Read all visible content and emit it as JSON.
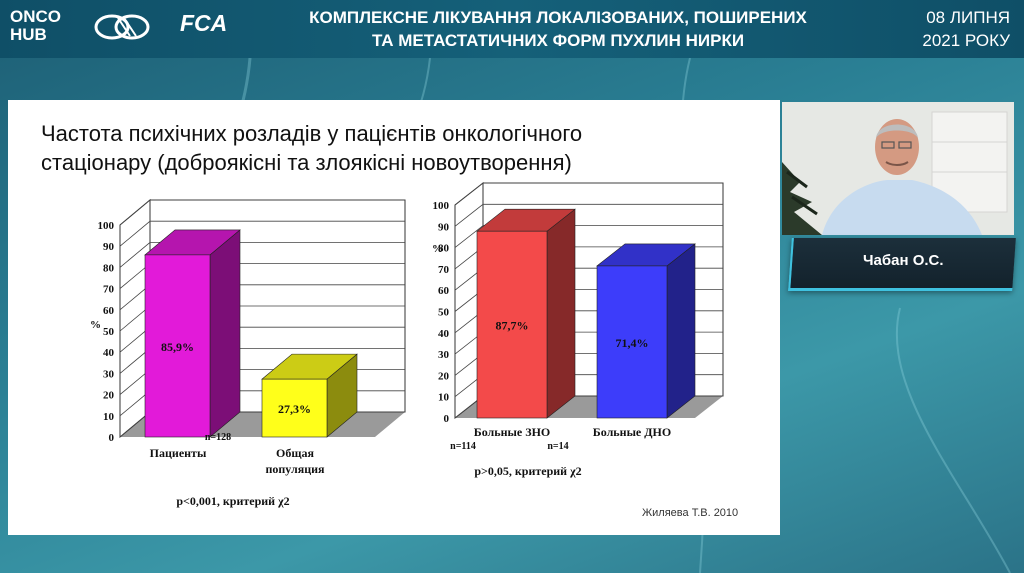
{
  "header": {
    "logo_onco_line1": "ONCO",
    "logo_onco_line2": "HUB",
    "logo_fca": "FCA",
    "title_line1": "КОМПЛЕКСНЕ ЛІКУВАННЯ ЛОКАЛІЗОВАНИХ, ПОШИРЕНИХ",
    "title_line2": "ТА МЕТАСТАТИЧНИХ ФОРМ ПУХЛИН НИРКИ",
    "date_line1": "08 ЛИПНЯ",
    "date_line2": "2021 РОКУ"
  },
  "slide": {
    "title_line1": "Частота психічних розладів у пацієнтів онкологічного",
    "title_line2": "стаціонару (доброякісні та злоякісні новоутворення)",
    "author": "Жиляева Т.В. 2010"
  },
  "speaker": {
    "name": "Чабан О.С."
  },
  "colors": {
    "magenta": "#e21ad9",
    "yellow": "#ffff1a",
    "red": "#f34a4a",
    "blue": "#3d3dfa"
  },
  "chart_data": [
    {
      "type": "bar",
      "categories": [
        "Пациенты",
        "Общая популяция"
      ],
      "values": [
        85.9,
        27.3
      ],
      "data_labels": [
        "85,9%",
        "27,3%"
      ],
      "ylabel": "%",
      "ylim": [
        0,
        100
      ],
      "yticks": [
        "0",
        "10",
        "20",
        "30",
        "40",
        "50",
        "60",
        "70",
        "80",
        "90",
        "100"
      ],
      "category_labels": [
        "Пациенты",
        "Общая",
        "популяция"
      ],
      "annotations": [
        "n=128"
      ],
      "footnote": "p<0,001, критерий χ2"
    },
    {
      "type": "bar",
      "categories": [
        "Больные ЗНО",
        "Больные ДНО"
      ],
      "values": [
        87.7,
        71.4
      ],
      "data_labels": [
        "87,7%",
        "71,4%"
      ],
      "ylabel": "%",
      "ylim": [
        0,
        100
      ],
      "yticks": [
        "0",
        "10",
        "20",
        "30",
        "40",
        "50",
        "60",
        "70",
        "80",
        "90",
        "100"
      ],
      "annotations": [
        "n=114",
        "n=14"
      ],
      "footnote": "p>0,05, критерий χ2"
    }
  ]
}
